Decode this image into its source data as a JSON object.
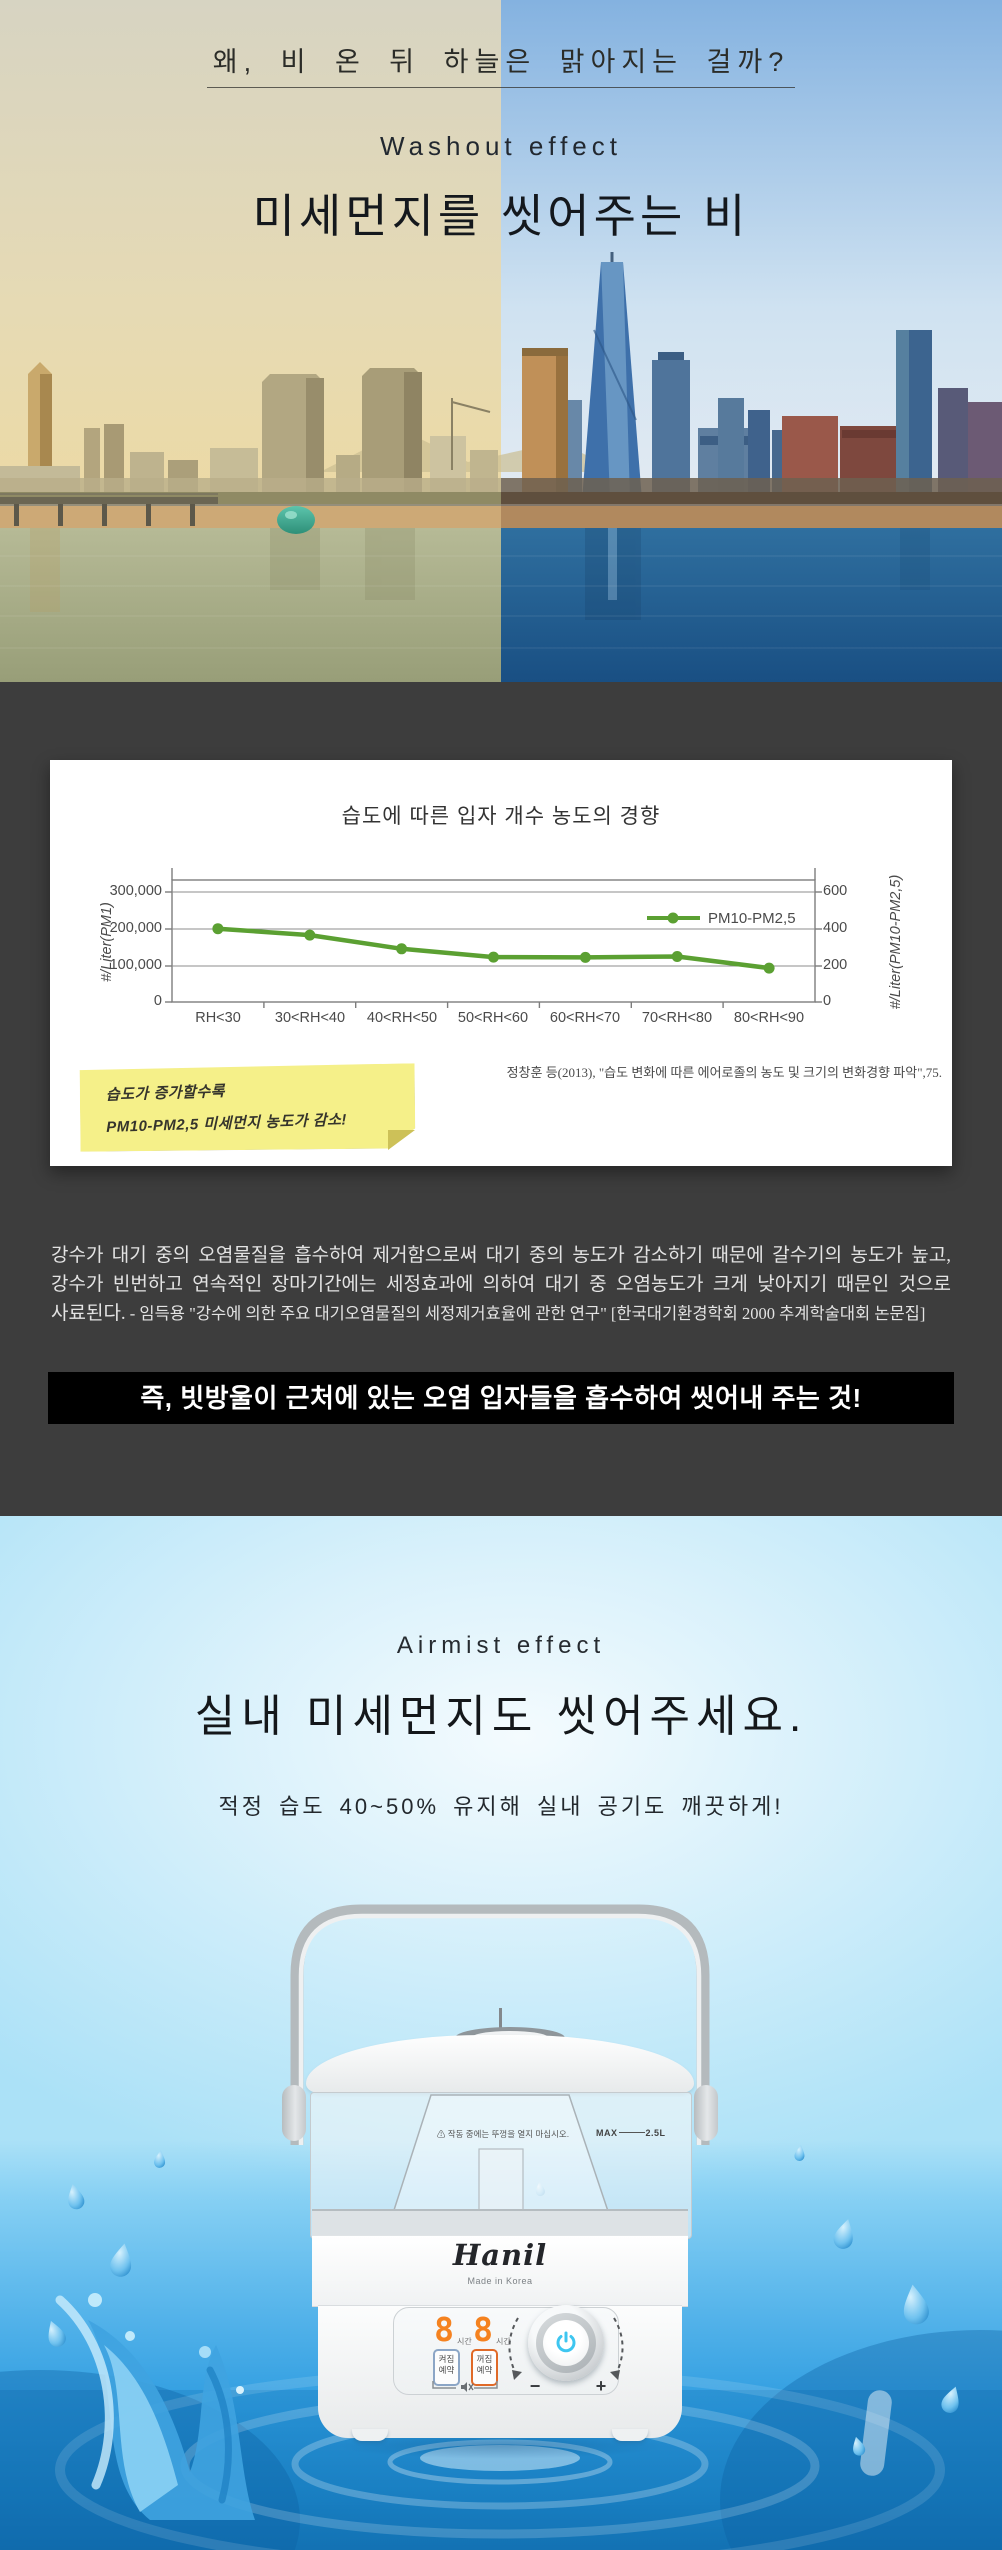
{
  "hero": {
    "question": "왜, 비 온 뒤 하늘은 맑아지는 걸까?",
    "subtitle": "Washout effect",
    "title": "미세먼지를 씻어주는 비"
  },
  "washout": {
    "chart_section": {
      "citation": "정창훈 등(2013), \"습도 변화에 따른 에어로졸의 농도 및 크기의 변화경향 파악\",75.",
      "note_line1": "습도가 증가할수록",
      "note_line2": "PM10-PM2,5 미세먼지 농도가 감소!"
    },
    "paragraph": "강수가 대기 중의 오염물질을 흡수하여 제거함으로써 대기 중의 농도가 감소하기 때문에 갈수기의 농도가 높고, 강수가 빈번하고 연속적인 장마기간에는 세정효과에 의하여 대기 중 오염농도가 크게 낮아지기 때문인 것으로 사료된다.",
    "paragraph_source": " - 임득용 \"강수에 의한 주요 대기오염물질의 세정제거효율에 관한 연구\" [한국대기환경학회 2000 추계학술대회 논문집]",
    "banner": "즉, 빗방울이 근처에 있는 오염 입자들을 흡수하여 씻어내 주는 것!"
  },
  "chart_data": {
    "type": "line",
    "title": "습도에 따른 입자 개수 농도의 경향",
    "categories": [
      "RH<30",
      "30<RH<40",
      "40<RH<50",
      "50<RH<60",
      "60<RH<70",
      "70<RH<80",
      "80<RH<90"
    ],
    "series": [
      {
        "name": "PM10-PM2,5",
        "axis": "right",
        "values": [
          400,
          365,
          290,
          245,
          243,
          248,
          185
        ],
        "left_axis_equivalent": [
          200000,
          182500,
          145000,
          122500,
          121500,
          124000,
          92500
        ]
      }
    ],
    "xlabel": "",
    "ylabel_left": "#/Liter(PM1)",
    "ylabel_right": "#/Liter(PM10-PM2,5)",
    "yticks_left": [
      "0",
      "100,000",
      "200,000",
      "300,000"
    ],
    "yticks_right": [
      "0",
      "200",
      "400",
      "600"
    ],
    "ylim_left": [
      0,
      330000
    ],
    "ylim_right": [
      0,
      660
    ],
    "grid": true,
    "legend_position": "upper right inside",
    "line_color": "#5ba032"
  },
  "airmist": {
    "subtitle": "Airmist effect",
    "title": "실내 미세먼지도 씻어주세요.",
    "tagline": "적정 습도 40~50% 유지해 실내 공기도 깨끗하게!"
  },
  "product": {
    "brand": "Hanil",
    "origin": "Made in Korea",
    "lid_warning": "⚠ 작동 중에는 뚜껑을 열지 마십시오.",
    "max_label": "MAX",
    "capacity": "2.5L",
    "timer_left_digit": "8",
    "timer_right_digit": "8",
    "timer_unit": "시간",
    "on_button_line1": "켜짐",
    "on_button_line2": "예약",
    "off_button_line1": "꺼짐",
    "off_button_line2": "예약",
    "minus": "−",
    "plus": "+"
  },
  "colors": {
    "dark_bg": "#3d3d3d",
    "banner_bg": "#000000",
    "accent_green": "#5ba032",
    "sticky_yellow": "#f5f089",
    "digit_orange": "#f5821f",
    "power_cyan": "#3ec6f0",
    "water_blue": "#2b9be0"
  }
}
